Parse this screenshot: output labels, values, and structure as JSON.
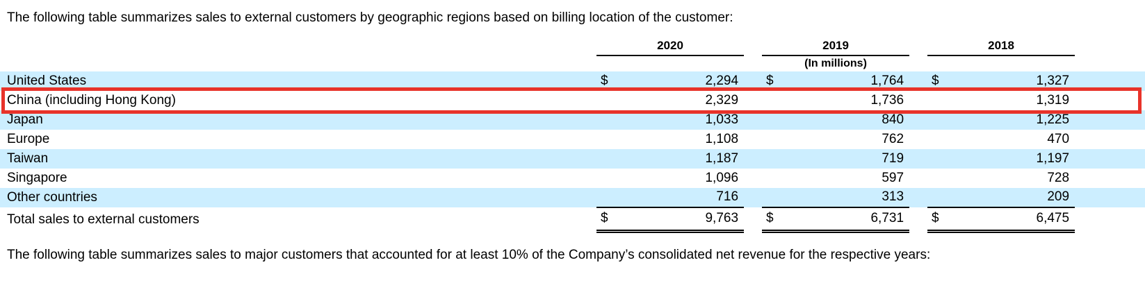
{
  "intro_text": "The following table summarizes sales to external customers by geographic regions based on billing location of the customer:",
  "table": {
    "year_headers": [
      "2020",
      "2019",
      "2018"
    ],
    "units_label": "(In millions)",
    "rows": [
      {
        "label": "United States",
        "dollar": "$",
        "values": [
          "2,294",
          "1,764",
          "1,327"
        ],
        "shaded": true,
        "highlighted": false,
        "rule_below": false
      },
      {
        "label": "China (including Hong Kong)",
        "dollar": "",
        "values": [
          "2,329",
          "1,736",
          "1,319"
        ],
        "shaded": false,
        "highlighted": true,
        "rule_below": false
      },
      {
        "label": "Japan",
        "dollar": "",
        "values": [
          "1,033",
          "840",
          "1,225"
        ],
        "shaded": true,
        "highlighted": false,
        "rule_below": false
      },
      {
        "label": "Europe",
        "dollar": "",
        "values": [
          "1,108",
          "762",
          "470"
        ],
        "shaded": false,
        "highlighted": false,
        "rule_below": false
      },
      {
        "label": "Taiwan",
        "dollar": "",
        "values": [
          "1,187",
          "719",
          "1,197"
        ],
        "shaded": true,
        "highlighted": false,
        "rule_below": false
      },
      {
        "label": "Singapore",
        "dollar": "",
        "values": [
          "1,096",
          "597",
          "728"
        ],
        "shaded": false,
        "highlighted": false,
        "rule_below": false
      },
      {
        "label": "Other countries",
        "dollar": "",
        "values": [
          "716",
          "313",
          "209"
        ],
        "shaded": true,
        "highlighted": false,
        "rule_below": true
      }
    ],
    "total_row": {
      "label": "Total sales to external customers",
      "dollar": "$",
      "values": [
        "9,763",
        "6,731",
        "6,475"
      ]
    }
  },
  "footer_text": "The following table summarizes sales to major customers that accounted for at least 10% of the Company’s consolidated net revenue for the respective years:",
  "colors": {
    "row_shade": "#cceeff",
    "highlight_red": "#e8332a",
    "text": "#000000",
    "rule": "#000000"
  }
}
